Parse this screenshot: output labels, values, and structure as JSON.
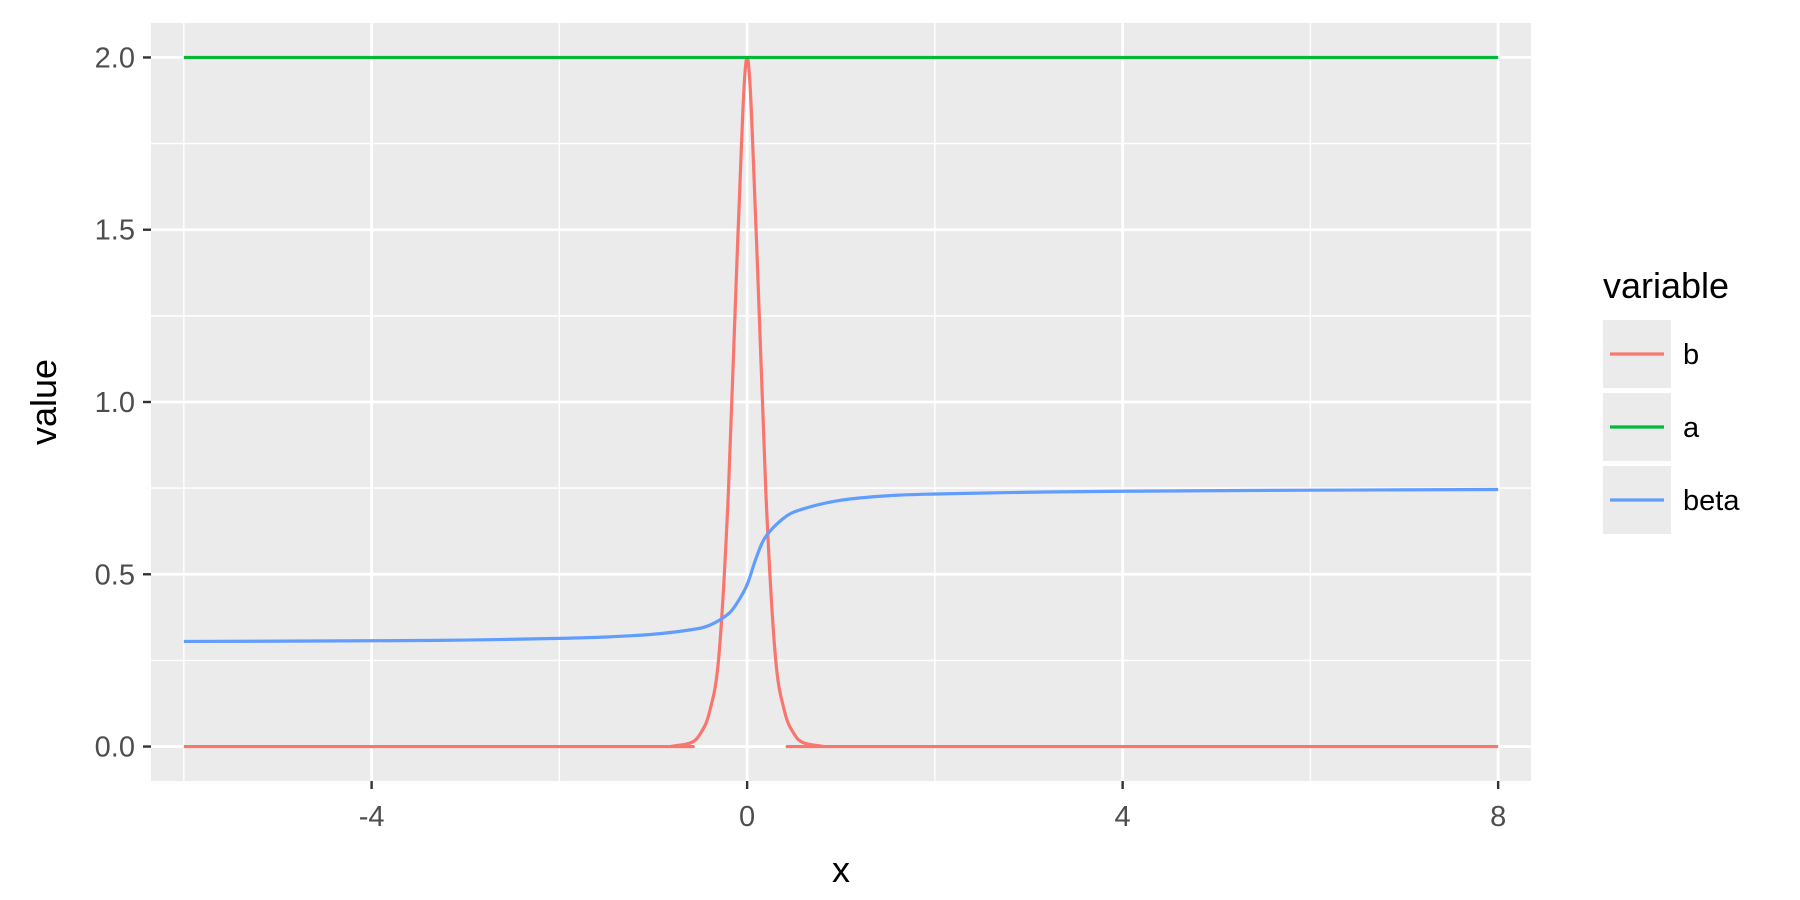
{
  "chart_data": {
    "type": "line",
    "xlabel": "x",
    "ylabel": "value",
    "xlim": [
      -6.35,
      8.35
    ],
    "ylim": [
      -0.1,
      2.1
    ],
    "x_ticks": [
      -4,
      0,
      4,
      8
    ],
    "x_tick_labels": [
      "-4",
      "0",
      "4",
      "8"
    ],
    "x_minor": [
      -6,
      -2,
      2,
      6
    ],
    "y_ticks": [
      0,
      0.5,
      1,
      1.5,
      2
    ],
    "y_tick_labels": [
      "0.0",
      "0.5",
      "1.0",
      "1.5",
      "2.0"
    ],
    "y_minor": [
      0.25,
      0.75,
      1.25,
      1.75
    ],
    "grid": true,
    "legend": {
      "title": "variable",
      "position": "right"
    },
    "series": [
      {
        "name": "b",
        "color": "#f8766d",
        "x": [
          -6,
          -1,
          -0.8,
          -0.6,
          -0.5,
          -0.4,
          -0.3,
          -0.2,
          -0.1,
          0,
          0.1,
          0.2,
          0.3,
          0.4,
          0.5,
          0.6,
          0.8,
          1,
          8
        ],
        "y": [
          0,
          0,
          0.001,
          0.011,
          0.037,
          0.101,
          0.265,
          0.735,
          1.47,
          2.0,
          1.47,
          0.735,
          0.265,
          0.101,
          0.037,
          0.011,
          0.001,
          0,
          0
        ]
      },
      {
        "name": "a",
        "color": "#00ba38",
        "x": [
          -6,
          8
        ],
        "y": [
          2,
          2
        ]
      },
      {
        "name": "beta",
        "color": "#619cff",
        "x": [
          -6,
          -4,
          -3,
          -2,
          -1.5,
          -1,
          -0.6,
          -0.4,
          -0.2,
          -0.1,
          0,
          0.1,
          0.2,
          0.4,
          0.6,
          1,
          1.5,
          2,
          3,
          4,
          6,
          8
        ],
        "y": [
          0.305,
          0.307,
          0.309,
          0.314,
          0.318,
          0.326,
          0.339,
          0.352,
          0.385,
          0.42,
          0.47,
          0.55,
          0.61,
          0.665,
          0.69,
          0.715,
          0.728,
          0.733,
          0.738,
          0.741,
          0.744,
          0.746
        ]
      }
    ]
  }
}
